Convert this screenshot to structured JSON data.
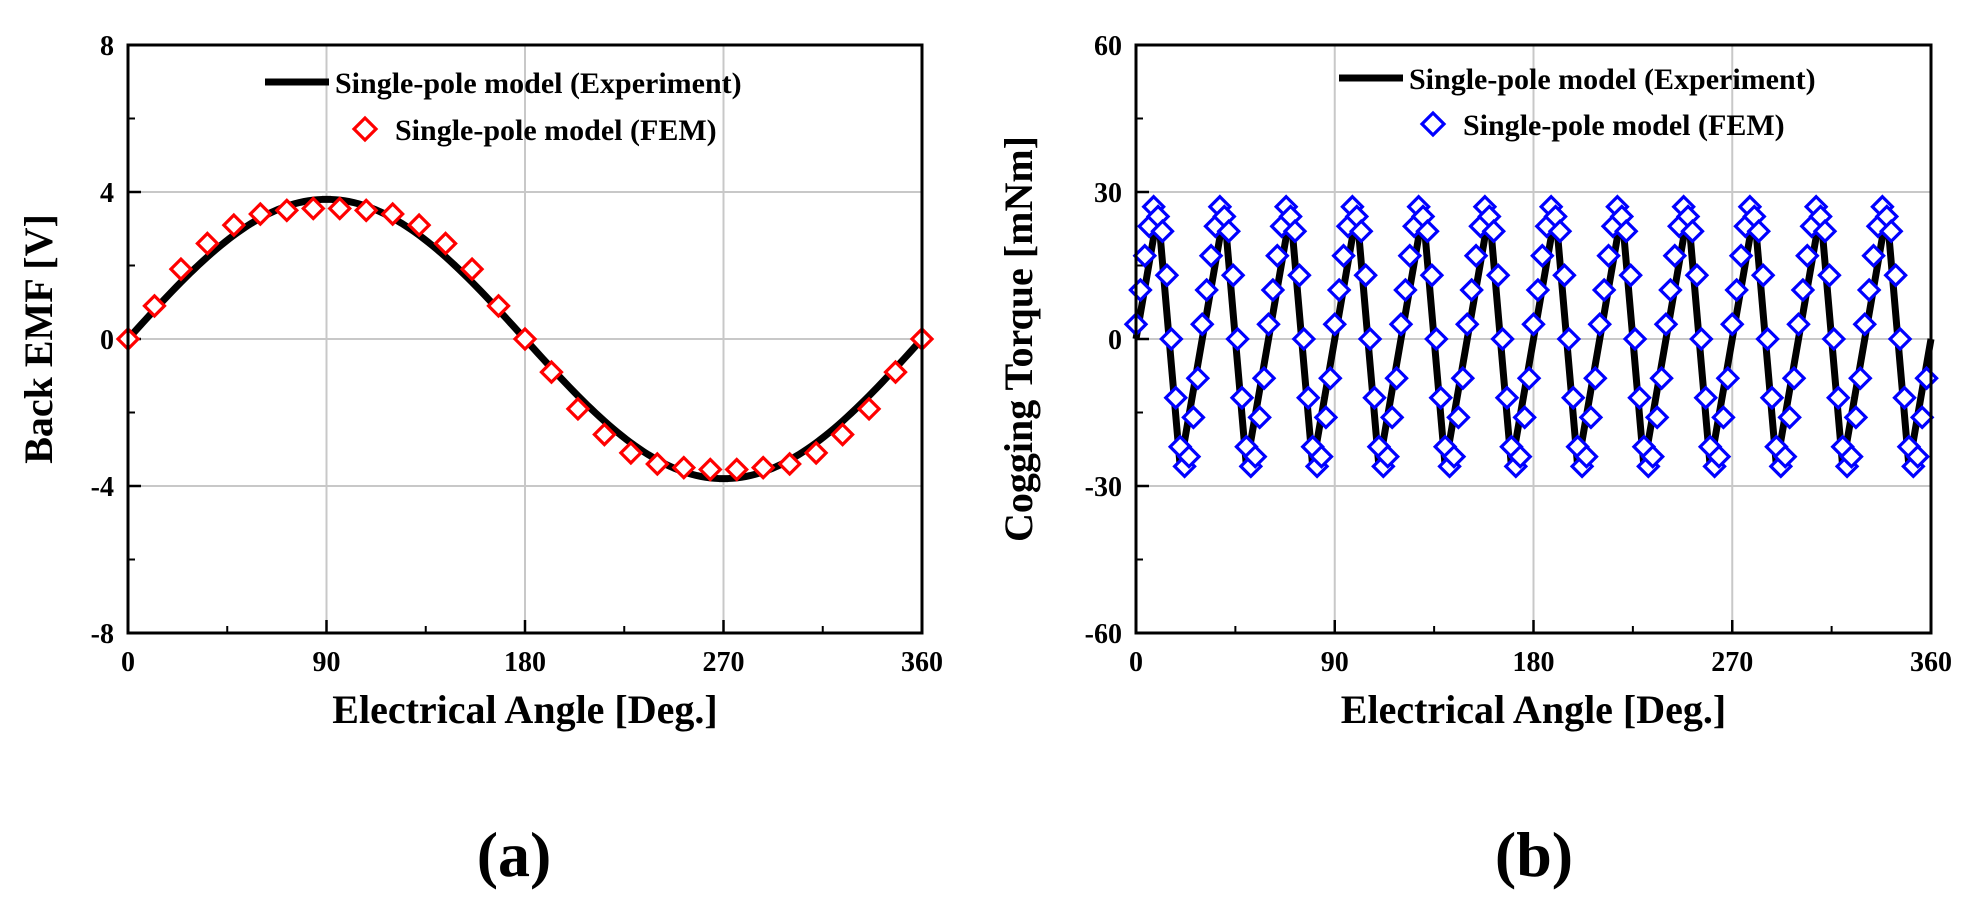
{
  "chart_data": [
    {
      "type": "line",
      "panel_label": "(a)",
      "xlabel": "Electrical Angle [Deg.]",
      "ylabel": "Back EMF [V]",
      "xlim": [
        0,
        360
      ],
      "ylim": [
        -8,
        8
      ],
      "xticks": [
        0,
        90,
        180,
        270,
        360
      ],
      "yticks": [
        -8,
        -4,
        0,
        4,
        8
      ],
      "x_tick_labels": [
        "0",
        "90",
        "180",
        "270",
        "360"
      ],
      "y_tick_labels": [
        "-8",
        "-4",
        "0",
        "4",
        "8"
      ],
      "grid": true,
      "legend_position": "top-right",
      "series": [
        {
          "name": "Single-pole model (Experiment)",
          "style": "line",
          "color": "#000000",
          "amplitude": 3.8,
          "x": [
            0,
            15,
            30,
            45,
            60,
            75,
            90,
            105,
            120,
            135,
            150,
            165,
            180,
            195,
            210,
            225,
            240,
            255,
            270,
            285,
            300,
            315,
            330,
            345,
            360
          ],
          "y": [
            0,
            0.98,
            1.9,
            2.69,
            3.29,
            3.67,
            3.8,
            3.67,
            3.29,
            2.69,
            1.9,
            0.98,
            0,
            -0.98,
            -1.9,
            -2.69,
            -3.29,
            -3.67,
            -3.8,
            -3.67,
            -3.29,
            -2.69,
            -1.9,
            -0.98,
            0
          ]
        },
        {
          "name": "Single-pole model (FEM)",
          "style": "marker",
          "marker": "diamond",
          "color": "#ff0000",
          "x": [
            0,
            12,
            24,
            36,
            48,
            60,
            72,
            84,
            96,
            108,
            120,
            132,
            144,
            156,
            168,
            180,
            192,
            204,
            216,
            228,
            240,
            252,
            264,
            276,
            288,
            300,
            312,
            324,
            336,
            348,
            360
          ],
          "y": [
            0,
            0.9,
            1.9,
            2.6,
            3.1,
            3.4,
            3.5,
            3.55,
            3.55,
            3.5,
            3.4,
            3.1,
            2.6,
            1.9,
            0.9,
            0,
            -0.9,
            -1.9,
            -2.6,
            -3.1,
            -3.4,
            -3.5,
            -3.55,
            -3.55,
            -3.5,
            -3.4,
            -3.1,
            -2.6,
            -1.9,
            -0.9,
            0
          ]
        }
      ]
    },
    {
      "type": "line",
      "panel_label": "(b)",
      "xlabel": "Electrical Angle [Deg.]",
      "ylabel": "Cogging Torque [mNm]",
      "xlim": [
        0,
        360
      ],
      "ylim": [
        -60,
        60
      ],
      "xticks": [
        0,
        90,
        180,
        270,
        360
      ],
      "yticks": [
        -60,
        -30,
        0,
        30,
        60
      ],
      "x_tick_labels": [
        "0",
        "90",
        "180",
        "270",
        "360"
      ],
      "y_tick_labels": [
        "-60",
        "-30",
        "0",
        "30",
        "60"
      ],
      "grid": true,
      "legend_position": "top-right",
      "series": [
        {
          "name": "Single-pole model (Experiment)",
          "style": "line",
          "color": "#000000",
          "period_deg": 30,
          "peak": 26,
          "trough": -26,
          "x": [
            0,
            10,
            20,
            30,
            40,
            50,
            60,
            70,
            80,
            90,
            100,
            110,
            120,
            130,
            140,
            150,
            160,
            170,
            180,
            190,
            200,
            210,
            220,
            230,
            240,
            250,
            260,
            270,
            280,
            290,
            300,
            310,
            320,
            330,
            340,
            350,
            360
          ],
          "y": [
            0,
            26,
            -26,
            0,
            26,
            -26,
            0,
            26,
            -26,
            0,
            26,
            -26,
            0,
            26,
            -26,
            0,
            26,
            -26,
            0,
            26,
            -26,
            0,
            26,
            -26,
            0,
            26,
            -26,
            0,
            26,
            -26,
            0,
            26,
            -26,
            0,
            26,
            -26,
            0
          ]
        },
        {
          "name": "Single-pole model (FEM)",
          "style": "marker",
          "marker": "diamond",
          "color": "#0000ff",
          "period_deg": 30,
          "peak": 27,
          "trough": -27,
          "x": [
            0,
            2,
            4,
            6,
            8,
            10,
            12,
            14,
            16,
            18,
            20,
            22,
            24,
            26,
            28,
            30
          ],
          "y": [
            3,
            10,
            17,
            23,
            27,
            25,
            22,
            13,
            0,
            -12,
            -22,
            -26,
            -24,
            -16,
            -8,
            0
          ],
          "repeats_every": 30
        }
      ]
    }
  ]
}
